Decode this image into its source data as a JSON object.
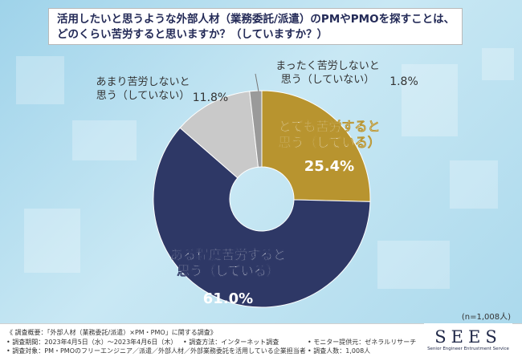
{
  "title": {
    "line1": "活用したいと思うような外部人材（業務委託/派遣）のPMやPMOを探すことは、",
    "line2": "どのくらい苦労すると思いますか？（していますか？）"
  },
  "n_note": "(n=1,008人)",
  "chart_data": {
    "type": "pie",
    "donut": true,
    "start": "top-center",
    "direction": "clockwise",
    "slices": [
      {
        "label_lines": [
          "とても苦労すると",
          "思う（している）"
        ],
        "value": 25.4,
        "value_label": "25.4%",
        "color": "#b8942f"
      },
      {
        "label_lines": [
          "ある程度苦労すると",
          "思う（している）"
        ],
        "value": 61.0,
        "value_label": "61.0%",
        "color": "#2e3866"
      },
      {
        "label_lines": [
          "あまり苦労しないと",
          "思う（していない）"
        ],
        "value": 11.8,
        "value_label": "11.8%",
        "color": "#c9c9c9"
      },
      {
        "label_lines": [
          "まったく苦労しないと",
          "思う（していない）"
        ],
        "value": 1.8,
        "value_label": "1.8%",
        "color": "#9a9a9a"
      }
    ]
  },
  "footer": {
    "overview": "《 調査概要：「外部人材（業務委託/派遣）×PM・PMO」に関する調査》",
    "period": "• 調査期間：2023年4月5日（水）～2023年4月6日（木）",
    "method": "• 調査方法：インターネット調査",
    "provider": "• モニター提供元：ゼネラルリサーチ",
    "target": "• 調査対象：PM・PMOのフリーエンジニア／派遣／外部人材／外部業務委託を活用している企業担当者",
    "count": "• 調査人数：1,008人"
  },
  "logo": {
    "text": "SEES",
    "sub": "Senior Engineer Entrustment Service"
  }
}
